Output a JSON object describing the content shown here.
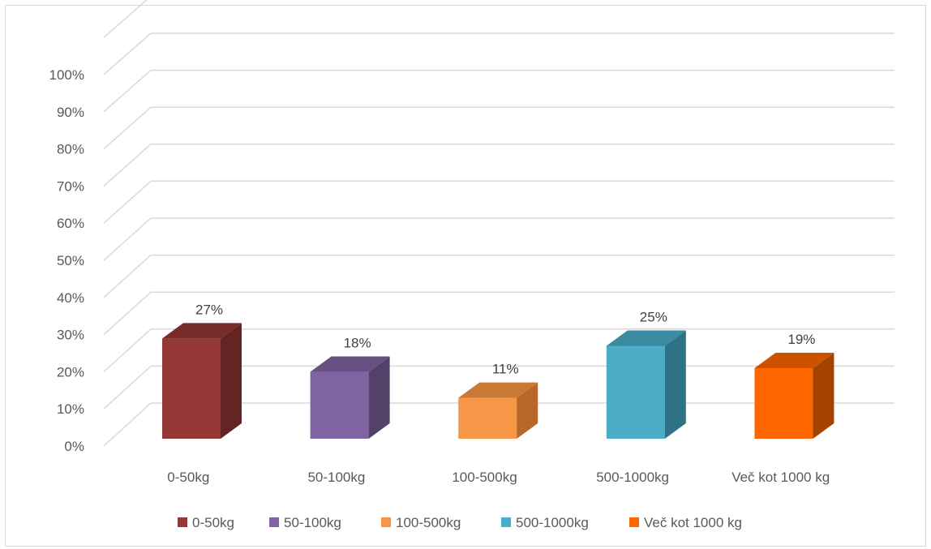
{
  "chart_data": {
    "type": "bar",
    "style": "3d-column",
    "categories": [
      "0-50kg",
      "50-100kg",
      "100-500kg",
      "500-1000kg",
      "Več kot 1000 kg"
    ],
    "values": [
      27,
      18,
      11,
      25,
      19
    ],
    "value_labels": [
      "27%",
      "18%",
      "11%",
      "25%",
      "19%"
    ],
    "ylim": [
      0,
      100
    ],
    "yticks": [
      "0%",
      "10%",
      "20%",
      "30%",
      "40%",
      "50%",
      "60%",
      "70%",
      "80%",
      "90%",
      "100%"
    ],
    "grid": true,
    "legend_position": "bottom",
    "legend": [
      "0-50kg",
      "50-100kg",
      "100-500kg",
      "500-1000kg",
      "Več kot 1000 kg"
    ],
    "colors": [
      {
        "front": "#953735",
        "side": "#632523",
        "top": "#772c2a"
      },
      {
        "front": "#8064a2",
        "side": "#544169",
        "top": "#665082"
      },
      {
        "front": "#f79646",
        "side": "#b8672a",
        "top": "#c97934"
      },
      {
        "front": "#4bacc6",
        "side": "#2f7285",
        "top": "#3a8aa0"
      },
      {
        "front": "#ff6600",
        "side": "#a64200",
        "top": "#cc5200"
      }
    ],
    "gridline_color": "#d9d9d9"
  }
}
